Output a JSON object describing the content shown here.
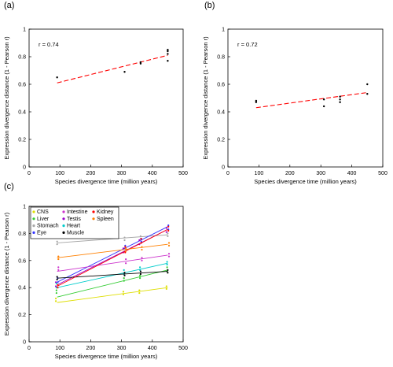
{
  "panels": {
    "a": {
      "label": "(a)"
    },
    "b": {
      "label": "(b)"
    },
    "c": {
      "label": "(c)"
    }
  },
  "chart_data": [
    {
      "panel": "(a)",
      "type": "scatter",
      "xlabel": "Species divergence time (million years)",
      "ylabel": "Expression divergence distance (1 - Pearson r)",
      "xlim": [
        0,
        500
      ],
      "ylim": [
        0,
        1
      ],
      "xticks": [
        "0",
        "100",
        "200",
        "300",
        "400",
        "500"
      ],
      "yticks": [
        "0",
        "0.2",
        "0.4",
        "0.6",
        "0.8",
        "1"
      ],
      "annotation": "r = 0.74",
      "points": [
        {
          "x": 91,
          "y": 0.65
        },
        {
          "x": 310,
          "y": 0.69
        },
        {
          "x": 362,
          "y": 0.75
        },
        {
          "x": 362,
          "y": 0.76
        },
        {
          "x": 450,
          "y": 0.77
        },
        {
          "x": 450,
          "y": 0.82
        },
        {
          "x": 450,
          "y": 0.84
        },
        {
          "x": 450,
          "y": 0.85
        }
      ],
      "fit": {
        "x": [
          91,
          450
        ],
        "y": [
          0.61,
          0.81
        ],
        "color": "#ff0000",
        "style": "dashed"
      },
      "grid": false
    },
    {
      "panel": "(b)",
      "type": "scatter",
      "xlabel": "Species divergence time (million years)",
      "ylabel": "Expression divergence distance (1 - Pearson r)",
      "xlim": [
        0,
        500
      ],
      "ylim": [
        0,
        1
      ],
      "xticks": [
        "0",
        "100",
        "200",
        "300",
        "400",
        "500"
      ],
      "yticks": [
        "0",
        "0.2",
        "0.4",
        "0.6",
        "0.8",
        "1"
      ],
      "annotation": "r = 0.72",
      "points": [
        {
          "x": 91,
          "y": 0.47
        },
        {
          "x": 91,
          "y": 0.48
        },
        {
          "x": 310,
          "y": 0.44
        },
        {
          "x": 310,
          "y": 0.49
        },
        {
          "x": 362,
          "y": 0.47
        },
        {
          "x": 362,
          "y": 0.49
        },
        {
          "x": 362,
          "y": 0.51
        },
        {
          "x": 450,
          "y": 0.53
        },
        {
          "x": 450,
          "y": 0.6
        }
      ],
      "fit": {
        "x": [
          91,
          450
        ],
        "y": [
          0.43,
          0.54
        ],
        "color": "#ff0000",
        "style": "dashed"
      },
      "grid": false
    },
    {
      "panel": "(c)",
      "type": "line",
      "xlabel": "Species divergence time (million years)",
      "ylabel": "Expression divergence distance (1 - Pearson r)",
      "xlim": [
        0,
        500
      ],
      "ylim": [
        0,
        1
      ],
      "xticks": [
        "0",
        "100",
        "200",
        "300",
        "400",
        "500"
      ],
      "yticks": [
        "0",
        "0.2",
        "0.4",
        "0.6",
        "0.8",
        "1"
      ],
      "legend_position": "top-left",
      "legend_columns": 3,
      "series": [
        {
          "name": "CNS",
          "color": "#dede00",
          "fit_x": [
            91,
            450
          ],
          "fit_y": [
            0.29,
            0.4
          ],
          "points_x": [
            91,
            91,
            310,
            310,
            362,
            362,
            450,
            450
          ],
          "points_y": [
            0.3,
            0.32,
            0.35,
            0.37,
            0.36,
            0.38,
            0.39,
            0.41
          ]
        },
        {
          "name": "Liver",
          "color": "#33cc33",
          "fit_x": [
            91,
            450
          ],
          "fit_y": [
            0.33,
            0.53
          ],
          "points_x": [
            91,
            91,
            310,
            310,
            362,
            362,
            450,
            450
          ],
          "points_y": [
            0.36,
            0.38,
            0.45,
            0.47,
            0.47,
            0.49,
            0.52,
            0.55
          ]
        },
        {
          "name": "Stomach",
          "color": "#a6a6a6",
          "fit_x": [
            91,
            450
          ],
          "fit_y": [
            0.73,
            0.79
          ],
          "points_x": [
            91,
            91,
            310,
            310,
            362,
            362,
            450,
            450
          ],
          "points_y": [
            0.72,
            0.74,
            0.75,
            0.77,
            0.76,
            0.78,
            0.78,
            0.8
          ]
        },
        {
          "name": "Eye",
          "color": "#3333ff",
          "fit_x": [
            91,
            450
          ],
          "fit_y": [
            0.44,
            0.85
          ],
          "points_x": [
            91,
            91,
            310,
            310,
            362,
            362,
            450,
            450
          ],
          "points_y": [
            0.44,
            0.47,
            0.69,
            0.71,
            0.74,
            0.76,
            0.83,
            0.86
          ]
        },
        {
          "name": "Intestine",
          "color": "#cc33cc",
          "fit_x": [
            91,
            450
          ],
          "fit_y": [
            0.52,
            0.64
          ],
          "points_x": [
            91,
            91,
            310,
            310,
            362,
            362,
            450,
            450
          ],
          "points_y": [
            0.53,
            0.55,
            0.58,
            0.61,
            0.6,
            0.62,
            0.63,
            0.65
          ]
        },
        {
          "name": "Testis",
          "color": "#9a00cc",
          "fit_x": [
            91,
            450
          ],
          "fit_y": [
            0.42,
            0.83
          ],
          "points_x": [
            91,
            91,
            310,
            310,
            362,
            362,
            450,
            450
          ],
          "points_y": [
            0.41,
            0.44,
            0.66,
            0.69,
            0.72,
            0.75,
            0.81,
            0.84
          ]
        },
        {
          "name": "Heart",
          "color": "#00cccc",
          "fit_x": [
            91,
            450
          ],
          "fit_y": [
            0.4,
            0.58
          ],
          "points_x": [
            91,
            91,
            310,
            310,
            362,
            362,
            450,
            450
          ],
          "points_y": [
            0.4,
            0.43,
            0.5,
            0.53,
            0.53,
            0.55,
            0.57,
            0.59
          ]
        },
        {
          "name": "Muscle",
          "color": "#000000",
          "fit_x": [
            91,
            450
          ],
          "fit_y": [
            0.47,
            0.52
          ],
          "points_x": [
            91,
            91,
            310,
            310,
            362,
            362,
            450,
            450
          ],
          "points_y": [
            0.46,
            0.48,
            0.49,
            0.51,
            0.5,
            0.52,
            0.51,
            0.53
          ]
        },
        {
          "name": "Kidney",
          "color": "#ff0000",
          "fit_x": [
            91,
            450
          ],
          "fit_y": [
            0.41,
            0.83
          ],
          "points_x": [
            91,
            91,
            310,
            310,
            362,
            362,
            450,
            450
          ],
          "points_y": [
            0.4,
            0.42,
            0.66,
            0.7,
            0.73,
            0.76,
            0.82,
            0.85
          ]
        },
        {
          "name": "Spleen",
          "color": "#ff8000",
          "fit_x": [
            91,
            450
          ],
          "fit_y": [
            0.62,
            0.72
          ],
          "points_x": [
            91,
            91,
            310,
            310,
            362,
            362,
            450,
            450
          ],
          "points_y": [
            0.61,
            0.63,
            0.67,
            0.69,
            0.68,
            0.7,
            0.71,
            0.73
          ]
        }
      ],
      "grid": false
    }
  ]
}
